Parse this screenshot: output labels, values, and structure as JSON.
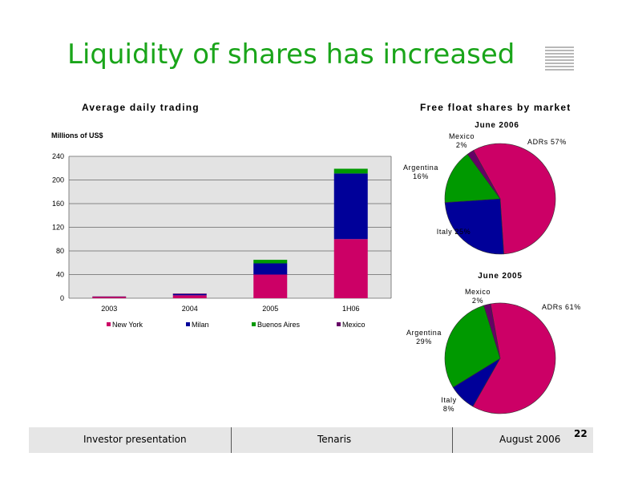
{
  "title": "Liquidity of shares has increased",
  "left_section_title": "Average daily trading",
  "right_section_title": "Free float shares by market",
  "units": "Millions of US$",
  "colors": {
    "new_york": "#cc0066",
    "milan": "#000099",
    "buenos_aires": "#009900",
    "mexico": "#660066",
    "title": "#1aa51a"
  },
  "chart_data": [
    {
      "type": "bar",
      "stacked": true,
      "title": "Average daily trading",
      "ylabel": "Millions of US$",
      "categories": [
        "2003",
        "2004",
        "2005",
        "1H06"
      ],
      "yticks": [
        "0",
        "40",
        "80",
        "120",
        "160",
        "200",
        "240"
      ],
      "ylim": [
        0,
        240
      ],
      "grid": true,
      "legend_position": "bottom",
      "series": [
        {
          "name": "New York",
          "color": "#cc0066",
          "values": [
            2,
            5,
            40,
            100
          ]
        },
        {
          "name": "Milan",
          "color": "#000099",
          "values": [
            0,
            2,
            19,
            111
          ]
        },
        {
          "name": "Buenos Aires",
          "color": "#009900",
          "values": [
            0,
            0,
            6,
            8
          ]
        },
        {
          "name": "Mexico",
          "color": "#660066",
          "values": [
            1,
            1,
            0,
            0
          ]
        }
      ]
    },
    {
      "type": "pie",
      "title": "June 2006",
      "slices": [
        {
          "name": "ADRs",
          "label": "ADRs 57%",
          "value": 57,
          "color": "#cc0066"
        },
        {
          "name": "Italy",
          "label": "Italy 25%",
          "value": 25,
          "color": "#000099"
        },
        {
          "name": "Argentina",
          "label_lines": [
            "Argentina",
            "16%"
          ],
          "value": 16,
          "color": "#009900"
        },
        {
          "name": "Mexico",
          "label_lines": [
            "Mexico",
            "2%"
          ],
          "value": 2,
          "color": "#660066"
        }
      ]
    },
    {
      "type": "pie",
      "title": "June 2005",
      "slices": [
        {
          "name": "ADRs",
          "label": "ADRs 61%",
          "value": 61,
          "color": "#cc0066"
        },
        {
          "name": "Italy",
          "label_lines": [
            "Italy",
            "8%"
          ],
          "value": 8,
          "color": "#000099"
        },
        {
          "name": "Argentina",
          "label_lines": [
            "Argentina",
            "29%"
          ],
          "value": 29,
          "color": "#009900"
        },
        {
          "name": "Mexico",
          "label_lines": [
            "Mexico",
            "2%"
          ],
          "value": 2,
          "color": "#660066"
        }
      ]
    }
  ],
  "footer": {
    "left": "Investor presentation",
    "center": "Tenaris",
    "right": "August 2006"
  },
  "page_number": "22"
}
